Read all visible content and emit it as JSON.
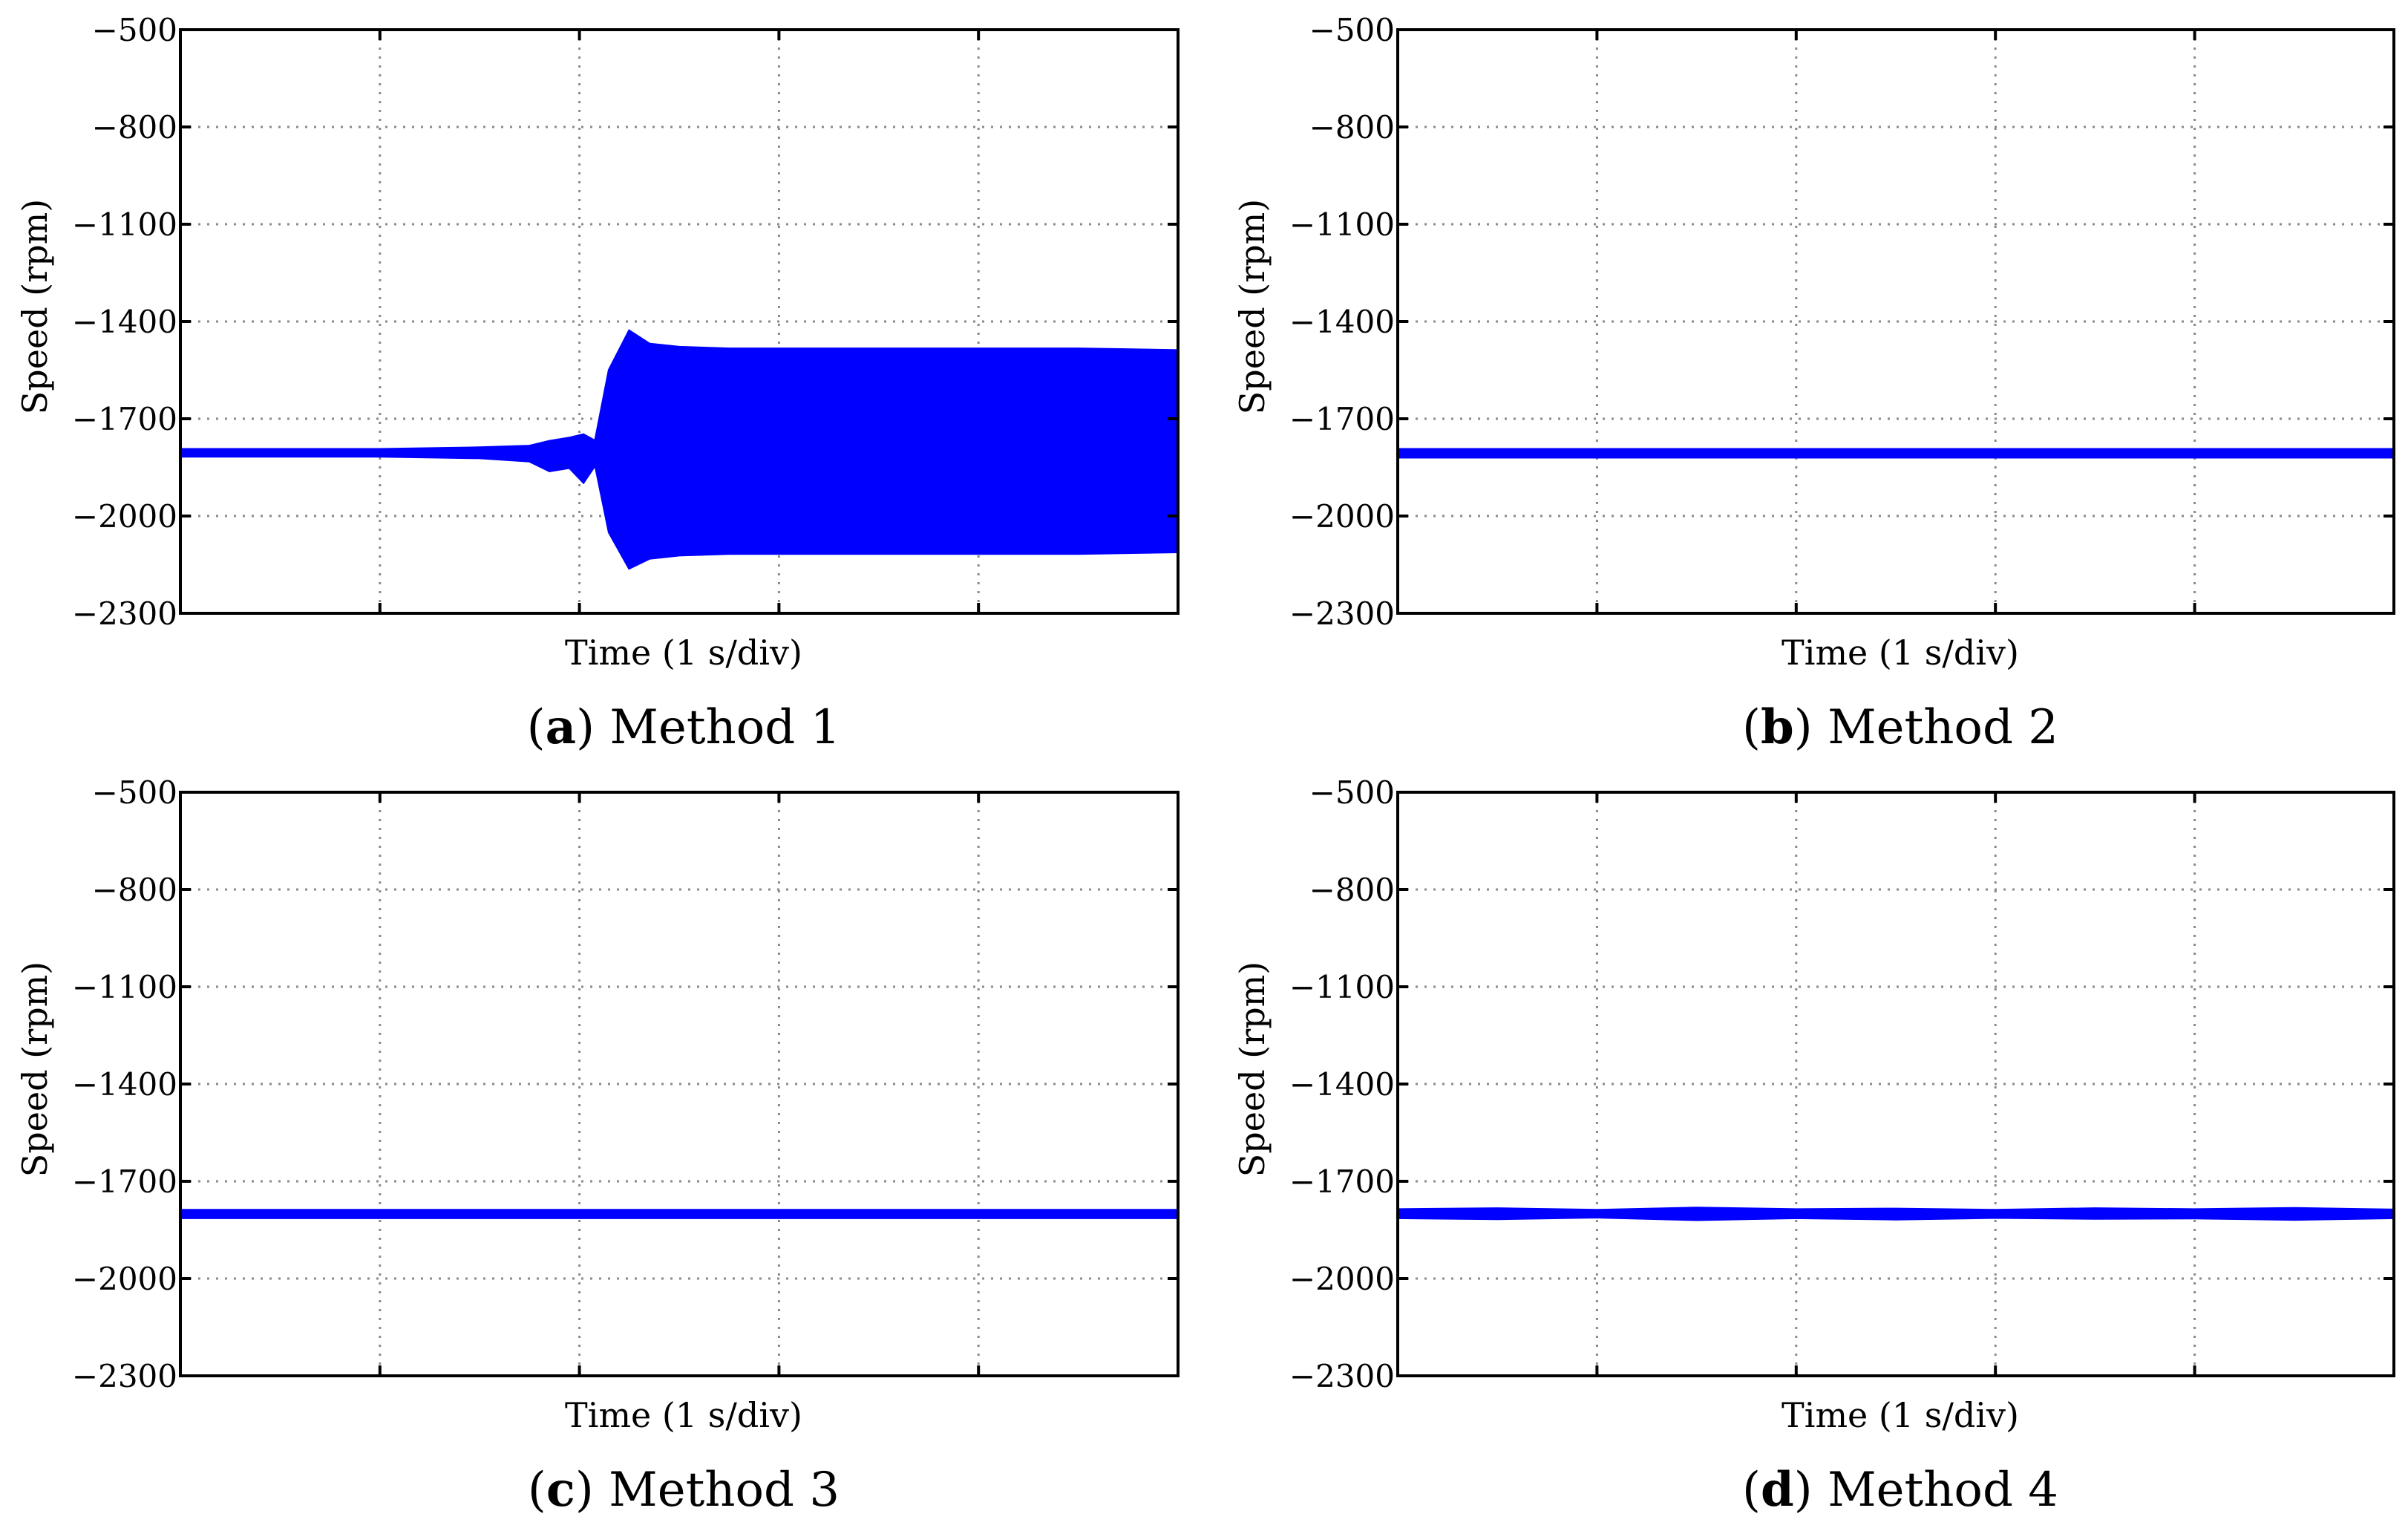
{
  "chart_data": [
    {
      "type": "line",
      "caption": {
        "letter": "a",
        "text": " Method 1",
        "open": "(",
        "close": ")"
      },
      "xlabel": "Time (1 s/div)",
      "ylabel": "Speed (rpm)",
      "ylim": [
        -2300,
        -500
      ],
      "y_ticks": [
        "−500",
        "−800",
        "−1100",
        "−1400",
        "−1700",
        "−2000",
        "−2300"
      ],
      "y_tick_values": [
        -500,
        -800,
        -1100,
        -1400,
        -1700,
        -2000,
        -2300
      ],
      "x_divisions": 5,
      "xlim": [
        0,
        5
      ],
      "grid": true,
      "color": "#0000ff",
      "series": [
        {
          "x": [
            0,
            1,
            1.5,
            1.75,
            1.85,
            1.95,
            2.02,
            2.08,
            2.15,
            2.25,
            2.35,
            2.5,
            2.75,
            3,
            3.5,
            4,
            4.5,
            5
          ],
          "upper": [
            -1795,
            -1795,
            -1790,
            -1785,
            -1770,
            -1760,
            -1750,
            -1770,
            -1550,
            -1430,
            -1470,
            -1480,
            -1485,
            -1485,
            -1485,
            -1485,
            -1485,
            -1490
          ],
          "lower": [
            -1815,
            -1815,
            -1820,
            -1830,
            -1860,
            -1850,
            -1895,
            -1840,
            -2050,
            -2160,
            -2130,
            -2120,
            -2115,
            -2115,
            -2115,
            -2115,
            -2115,
            -2110
          ]
        }
      ]
    },
    {
      "type": "line",
      "caption": {
        "letter": "b",
        "text": " Method 2",
        "open": "(",
        "close": ")"
      },
      "xlabel": "Time (1 s/div)",
      "ylabel": "Speed (rpm)",
      "ylim": [
        -2300,
        -500
      ],
      "y_ticks": [
        "−500",
        "−800",
        "−1100",
        "−1400",
        "−1700",
        "−2000",
        "−2300"
      ],
      "y_tick_values": [
        -500,
        -800,
        -1100,
        -1400,
        -1700,
        -2000,
        -2300
      ],
      "x_divisions": 5,
      "xlim": [
        0,
        5
      ],
      "grid": true,
      "color": "#0000ff",
      "series": [
        {
          "x": [
            0,
            5
          ],
          "upper": [
            -1795,
            -1795
          ],
          "lower": [
            -1818,
            -1818
          ]
        }
      ]
    },
    {
      "type": "line",
      "caption": {
        "letter": "c",
        "text": " Method 3",
        "open": "(",
        "close": ")"
      },
      "xlabel": "Time (1 s/div)",
      "ylabel": "Speed (rpm)",
      "ylim": [
        -2300,
        -500
      ],
      "y_ticks": [
        "−500",
        "−800",
        "−1100",
        "−1400",
        "−1700",
        "−2000",
        "−2300"
      ],
      "y_tick_values": [
        -500,
        -800,
        -1100,
        -1400,
        -1700,
        -2000,
        -2300
      ],
      "x_divisions": 5,
      "xlim": [
        0,
        5
      ],
      "grid": true,
      "color": "#0000ff",
      "series": [
        {
          "x": [
            0,
            5
          ],
          "upper": [
            -1790,
            -1790
          ],
          "lower": [
            -1812,
            -1812
          ]
        }
      ]
    },
    {
      "type": "line",
      "caption": {
        "letter": "d",
        "text": " Method 4",
        "open": "(",
        "close": ")"
      },
      "xlabel": "Time (1 s/div)",
      "ylabel": "Speed (rpm)",
      "ylim": [
        -2300,
        -500
      ],
      "y_ticks": [
        "−500",
        "−800",
        "−1100",
        "−1400",
        "−1700",
        "−2000",
        "−2300"
      ],
      "y_tick_values": [
        -500,
        -800,
        -1100,
        -1400,
        -1700,
        -2000,
        -2300
      ],
      "x_divisions": 5,
      "xlim": [
        0,
        5
      ],
      "grid": true,
      "color": "#0000ff",
      "series": [
        {
          "x": [
            0,
            0.5,
            1,
            1.5,
            2,
            2.5,
            3,
            3.5,
            4,
            4.5,
            5
          ],
          "upper": [
            -1788,
            -1785,
            -1790,
            -1783,
            -1788,
            -1786,
            -1790,
            -1785,
            -1788,
            -1784,
            -1789
          ],
          "lower": [
            -1812,
            -1815,
            -1810,
            -1818,
            -1812,
            -1816,
            -1811,
            -1814,
            -1813,
            -1817,
            -1812
          ]
        }
      ]
    }
  ]
}
